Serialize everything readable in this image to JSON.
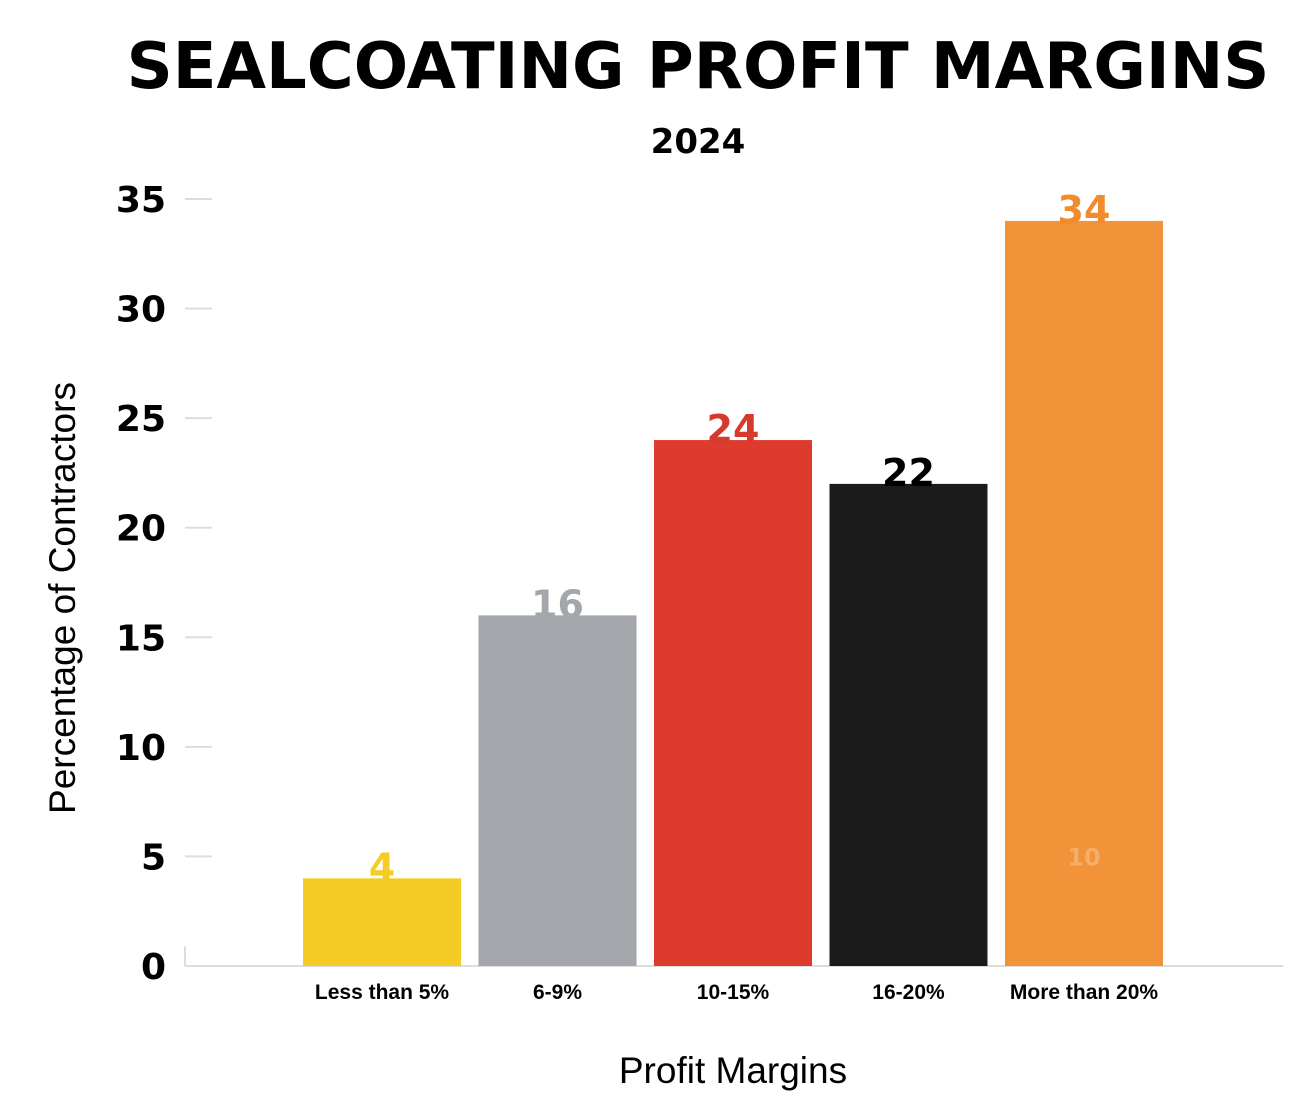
{
  "chart_data": {
    "type": "bar",
    "title": "SEALCOATING PROFIT MARGINS",
    "subtitle": "2024",
    "xlabel": "Profit Margins",
    "ylabel": "Percentage of Contractors",
    "ylim": [
      0,
      35
    ],
    "yticks": [
      0,
      5,
      10,
      15,
      20,
      25,
      30,
      35
    ],
    "grid": false,
    "categories": [
      "Less than 5%",
      "6-9%",
      "10-15%",
      "16-20%",
      "More than 20%"
    ],
    "values": [
      4,
      16,
      24,
      22,
      34
    ],
    "colors": [
      "#f5cc26",
      "#a3a6aa",
      "#dd3b2e",
      "#1b1b1b",
      "#f29239"
    ],
    "label_colors": [
      "#f5cc26",
      "#a3a6aa",
      "#d63a2c",
      "#000000",
      "#f28b2c"
    ],
    "annotations": [
      {
        "text": "10",
        "category": "More than 20%",
        "y": 5,
        "color": "#f6ad67"
      }
    ]
  }
}
